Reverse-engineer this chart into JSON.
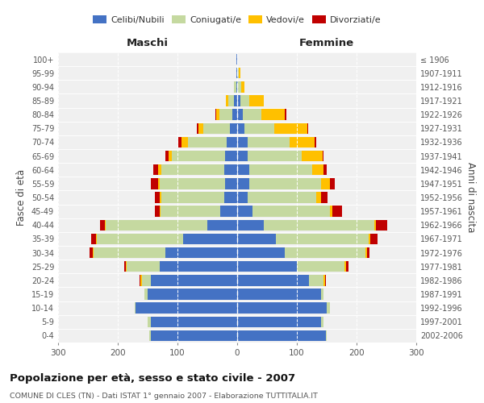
{
  "age_groups": [
    "0-4",
    "5-9",
    "10-14",
    "15-19",
    "20-24",
    "25-29",
    "30-34",
    "35-39",
    "40-44",
    "45-49",
    "50-54",
    "55-59",
    "60-64",
    "65-69",
    "70-74",
    "75-79",
    "80-84",
    "85-89",
    "90-94",
    "95-99",
    "100+"
  ],
  "birth_years": [
    "2002-2006",
    "1997-2001",
    "1992-1996",
    "1987-1991",
    "1982-1986",
    "1977-1981",
    "1972-1976",
    "1967-1971",
    "1962-1966",
    "1957-1961",
    "1952-1956",
    "1947-1951",
    "1942-1946",
    "1937-1941",
    "1932-1936",
    "1927-1931",
    "1922-1926",
    "1917-1921",
    "1912-1916",
    "1907-1911",
    "≤ 1906"
  ],
  "maschi": {
    "celibi": [
      145,
      145,
      170,
      150,
      145,
      130,
      120,
      90,
      50,
      28,
      22,
      20,
      22,
      20,
      18,
      12,
      8,
      5,
      2,
      1,
      1
    ],
    "coniugati": [
      2,
      5,
      2,
      5,
      15,
      55,
      120,
      145,
      170,
      100,
      105,
      110,
      105,
      90,
      65,
      45,
      22,
      10,
      3,
      1,
      0
    ],
    "vedovi": [
      0,
      0,
      0,
      0,
      2,
      2,
      2,
      2,
      2,
      2,
      3,
      3,
      5,
      5,
      10,
      8,
      5,
      4,
      1,
      0,
      0
    ],
    "divorziati": [
      0,
      0,
      0,
      0,
      2,
      2,
      5,
      8,
      8,
      8,
      8,
      12,
      8,
      5,
      5,
      2,
      2,
      0,
      0,
      0,
      0
    ]
  },
  "femmine": {
    "nubili": [
      148,
      140,
      150,
      140,
      120,
      100,
      80,
      65,
      45,
      25,
      18,
      20,
      20,
      18,
      18,
      12,
      10,
      5,
      2,
      1,
      1
    ],
    "coniugate": [
      2,
      5,
      5,
      5,
      25,
      80,
      135,
      155,
      185,
      130,
      115,
      120,
      105,
      90,
      70,
      50,
      30,
      15,
      5,
      2,
      0
    ],
    "vedove": [
      0,
      0,
      0,
      0,
      2,
      2,
      2,
      3,
      3,
      5,
      8,
      15,
      20,
      35,
      42,
      55,
      40,
      25,
      5,
      2,
      0
    ],
    "divorziate": [
      0,
      0,
      0,
      0,
      2,
      5,
      5,
      12,
      18,
      15,
      10,
      8,
      5,
      2,
      2,
      2,
      2,
      0,
      0,
      0,
      0
    ]
  },
  "colors": {
    "celibi_nubili": "#4472c4",
    "coniugati_e": "#c5d9a0",
    "vedovi_e": "#ffc000",
    "divorziati_e": "#c00000"
  },
  "title": "Popolazione per età, sesso e stato civile - 2007",
  "subtitle": "COMUNE DI CLES (TN) - Dati ISTAT 1° gennaio 2007 - Elaborazione TUTTITALIA.IT",
  "ylabel_left": "Fasce di età",
  "ylabel_right": "Anni di nascita",
  "xlabel_left": "Maschi",
  "xlabel_right": "Femmine",
  "xlim": 300,
  "background_color": "#ffffff",
  "plot_bg_color": "#f0f0f0",
  "grid_color": "#cccccc"
}
